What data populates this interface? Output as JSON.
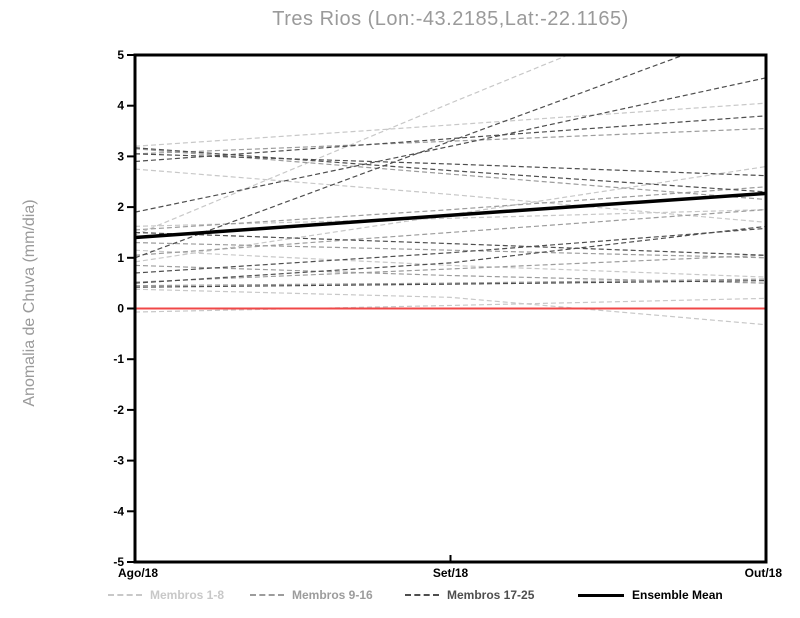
{
  "chart_data": {
    "type": "line",
    "title": "Tres Rios (Lon:-43.2185,Lat:-22.1165)",
    "ylabel": "Anomalia de Chuva (mm/dia)",
    "xlabel": "",
    "x_tick_labels": [
      "Ago/18",
      "Set/18",
      "Out/18"
    ],
    "y_tick_labels": [
      "5",
      "4",
      "3",
      "2",
      "1",
      "0",
      "-1",
      "-2",
      "-3",
      "-4",
      "-5"
    ],
    "y_ticks": [
      5,
      4,
      3,
      2,
      1,
      0,
      -1,
      -2,
      -3,
      -4,
      -5
    ],
    "ylim": [
      -5,
      5
    ],
    "grid": false,
    "legend_position": "bottom",
    "zero_line": {
      "y": 0,
      "color": "#f04848"
    },
    "frame_color": "#000000",
    "groups": [
      {
        "name": "Membros 1-8",
        "color": "#c8c8c8",
        "style": "dashed"
      },
      {
        "name": "Membros 9-16",
        "color": "#9c9c9c",
        "style": "dashed"
      },
      {
        "name": "Membros 17-25",
        "color": "#4e4e4e",
        "style": "dashed"
      }
    ],
    "members": [
      {
        "group": 0,
        "values": [
          1.45,
          4.05,
          6.6
        ]
      },
      {
        "group": 0,
        "values": [
          3.2,
          3.62,
          4.05
        ]
      },
      {
        "group": 0,
        "values": [
          2.75,
          2.25,
          1.7
        ]
      },
      {
        "group": 0,
        "values": [
          -0.07,
          0.06,
          0.2
        ]
      },
      {
        "group": 0,
        "values": [
          1.62,
          1.78,
          1.95
        ]
      },
      {
        "group": 0,
        "values": [
          1.15,
          0.85,
          0.62
        ]
      },
      {
        "group": 0,
        "values": [
          0.92,
          1.85,
          2.8
        ]
      },
      {
        "group": 0,
        "values": [
          0.38,
          0.22,
          -0.32
        ]
      },
      {
        "group": 1,
        "values": [
          3.15,
          2.65,
          2.15
        ]
      },
      {
        "group": 1,
        "values": [
          3.05,
          3.3,
          3.55
        ]
      },
      {
        "group": 1,
        "values": [
          1.55,
          1.95,
          2.4
        ]
      },
      {
        "group": 1,
        "values": [
          1.3,
          1.15,
          1.0
        ]
      },
      {
        "group": 1,
        "values": [
          1.05,
          1.5,
          1.95
        ]
      },
      {
        "group": 1,
        "values": [
          0.85,
          0.65,
          0.5
        ]
      },
      {
        "group": 1,
        "values": [
          0.52,
          0.78,
          1.05
        ]
      },
      {
        "group": 1,
        "values": [
          0.45,
          0.5,
          0.58
        ]
      },
      {
        "group": 2,
        "values": [
          1.0,
          3.3,
          5.6
        ]
      },
      {
        "group": 2,
        "values": [
          3.17,
          2.72,
          2.3
        ]
      },
      {
        "group": 2,
        "values": [
          2.9,
          3.35,
          3.8
        ]
      },
      {
        "group": 2,
        "values": [
          3.05,
          2.85,
          2.62
        ]
      },
      {
        "group": 2,
        "values": [
          1.9,
          3.2,
          4.55
        ]
      },
      {
        "group": 2,
        "values": [
          0.7,
          1.1,
          1.58
        ]
      },
      {
        "group": 2,
        "values": [
          0.42,
          0.48,
          0.55
        ]
      },
      {
        "group": 2,
        "values": [
          0.5,
          0.9,
          1.62
        ]
      },
      {
        "group": 2,
        "values": [
          1.5,
          1.28,
          1.05
        ]
      }
    ],
    "ensemble_mean": {
      "name": "Ensemble Mean",
      "color": "#000000",
      "values": [
        1.4,
        1.84,
        2.27
      ]
    }
  },
  "legend": {
    "items": [
      {
        "label": "Membros 1-8",
        "color": "#c8c8c8",
        "style": "dashed"
      },
      {
        "label": "Membros 9-16",
        "color": "#9c9c9c",
        "style": "dashed"
      },
      {
        "label": "Membros 17-25",
        "color": "#4e4e4e",
        "style": "dashed"
      },
      {
        "label": "Ensemble Mean",
        "color": "#000000",
        "style": "solid"
      }
    ]
  }
}
